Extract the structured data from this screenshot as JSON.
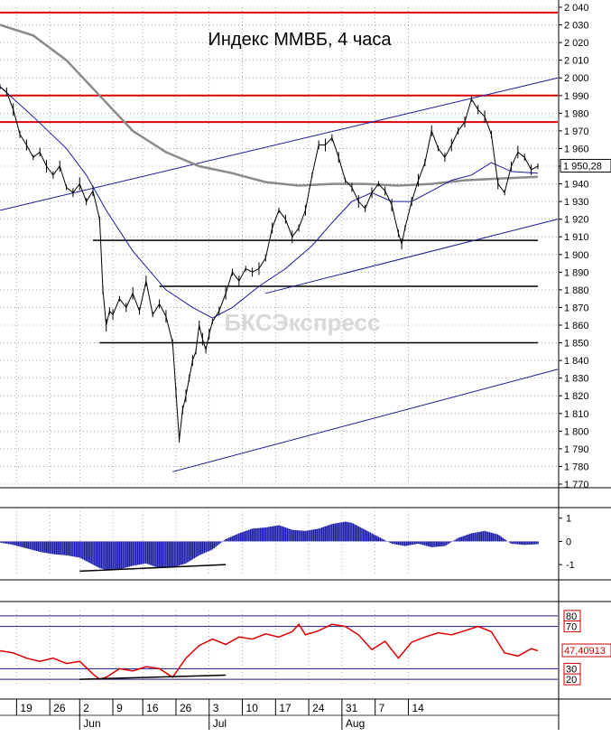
{
  "chart_data": {
    "type": "line",
    "title": "Индекс ММВБ, 4 часа",
    "watermark": "БКСЭкспресс",
    "colors": {
      "background": "#ffffff",
      "grid": "#777777",
      "price": "#000000",
      "ma_fast": "#1a1a9a",
      "ma_slow": "#8a8a8a",
      "resistance": "#dd0000",
      "support": "#000000",
      "channel": "#1a1a9a",
      "macd": "#1a1aaa",
      "rsi": "#dd0000",
      "rsi_levels": "#1a1a8a",
      "rsi_label_border": "#cc0000"
    },
    "price_panel": {
      "ylim": [
        1770,
        2040
      ],
      "y_ticks": [
        "2 040",
        "2 030",
        "2 020",
        "2 010",
        "2 000",
        "1 990",
        "1 980",
        "1 970",
        "1 960",
        "1 950",
        "1 940",
        "1 930",
        "1 920",
        "1 910",
        "1 900",
        "1 890",
        "1 880",
        "1 870",
        "1 860",
        "1 850",
        "1 840",
        "1 830",
        "1 820",
        "1 810",
        "1 800",
        "1 790",
        "1 780",
        "1 770"
      ],
      "y_tick_values": [
        2040,
        2030,
        2020,
        2010,
        2000,
        1990,
        1980,
        1970,
        1960,
        1950,
        1940,
        1930,
        1920,
        1910,
        1900,
        1890,
        1880,
        1870,
        1860,
        1850,
        1840,
        1830,
        1820,
        1810,
        1800,
        1790,
        1780,
        1770
      ],
      "last_value_label": "1 950,28",
      "last_value": 1950.28,
      "grid": true,
      "close_series": [
        [
          0,
          1995
        ],
        [
          2,
          1992
        ],
        [
          4,
          1982
        ],
        [
          6,
          1968
        ],
        [
          8,
          1962
        ],
        [
          10,
          1955
        ],
        [
          12,
          1958
        ],
        [
          14,
          1950
        ],
        [
          16,
          1945
        ],
        [
          18,
          1950
        ],
        [
          20,
          1938
        ],
        [
          22,
          1935
        ],
        [
          24,
          1940
        ],
        [
          26,
          1930
        ],
        [
          28,
          1936
        ],
        [
          30,
          1920
        ],
        [
          31,
          1880
        ],
        [
          32,
          1860
        ],
        [
          33,
          1868
        ],
        [
          34,
          1866
        ],
        [
          36,
          1875
        ],
        [
          38,
          1870
        ],
        [
          40,
          1878
        ],
        [
          42,
          1868
        ],
        [
          44,
          1885
        ],
        [
          46,
          1866
        ],
        [
          48,
          1872
        ],
        [
          50,
          1865
        ],
        [
          52,
          1850
        ],
        [
          53,
          1822
        ],
        [
          54,
          1795
        ],
        [
          55,
          1812
        ],
        [
          56,
          1820
        ],
        [
          57,
          1830
        ],
        [
          58,
          1840
        ],
        [
          59,
          1845
        ],
        [
          60,
          1860
        ],
        [
          61,
          1852
        ],
        [
          62,
          1846
        ],
        [
          63,
          1855
        ],
        [
          64,
          1862
        ],
        [
          66,
          1868
        ],
        [
          68,
          1878
        ],
        [
          70,
          1890
        ],
        [
          72,
          1885
        ],
        [
          74,
          1892
        ],
        [
          76,
          1890
        ],
        [
          78,
          1892
        ],
        [
          80,
          1898
        ],
        [
          82,
          1915
        ],
        [
          84,
          1925
        ],
        [
          86,
          1920
        ],
        [
          88,
          1910
        ],
        [
          90,
          1915
        ],
        [
          92,
          1925
        ],
        [
          94,
          1945
        ],
        [
          96,
          1962
        ],
        [
          98,
          1962
        ],
        [
          100,
          1966
        ],
        [
          102,
          1955
        ],
        [
          104,
          1942
        ],
        [
          106,
          1938
        ],
        [
          108,
          1930
        ],
        [
          110,
          1926
        ],
        [
          112,
          1935
        ],
        [
          114,
          1940
        ],
        [
          116,
          1936
        ],
        [
          118,
          1928
        ],
        [
          120,
          1912
        ],
        [
          121,
          1906
        ],
        [
          122,
          1915
        ],
        [
          124,
          1930
        ],
        [
          126,
          1942
        ],
        [
          128,
          1952
        ],
        [
          130,
          1970
        ],
        [
          132,
          1960
        ],
        [
          134,
          1955
        ],
        [
          136,
          1962
        ],
        [
          138,
          1970
        ],
        [
          140,
          1975
        ],
        [
          142,
          1988
        ],
        [
          144,
          1982
        ],
        [
          146,
          1978
        ],
        [
          148,
          1968
        ],
        [
          150,
          1940
        ],
        [
          152,
          1935
        ],
        [
          154,
          1950
        ],
        [
          156,
          1958
        ],
        [
          158,
          1955
        ],
        [
          160,
          1948
        ],
        [
          162,
          1950
        ]
      ],
      "ma_fast": [
        [
          0,
          1995
        ],
        [
          10,
          1978
        ],
        [
          20,
          1960
        ],
        [
          26,
          1945
        ],
        [
          32,
          1925
        ],
        [
          40,
          1902
        ],
        [
          50,
          1880
        ],
        [
          58,
          1870
        ],
        [
          64,
          1864
        ],
        [
          70,
          1870
        ],
        [
          78,
          1882
        ],
        [
          86,
          1892
        ],
        [
          94,
          1905
        ],
        [
          100,
          1918
        ],
        [
          106,
          1930
        ],
        [
          112,
          1935
        ],
        [
          118,
          1930
        ],
        [
          124,
          1930
        ],
        [
          130,
          1936
        ],
        [
          136,
          1942
        ],
        [
          142,
          1945
        ],
        [
          148,
          1952
        ],
        [
          154,
          1947
        ],
        [
          162,
          1946
        ]
      ],
      "ma_slow": [
        [
          0,
          2030
        ],
        [
          10,
          2024
        ],
        [
          20,
          2010
        ],
        [
          30,
          1990
        ],
        [
          40,
          1970
        ],
        [
          50,
          1958
        ],
        [
          60,
          1950
        ],
        [
          70,
          1946
        ],
        [
          80,
          1941
        ],
        [
          90,
          1939
        ],
        [
          100,
          1940
        ],
        [
          110,
          1940
        ],
        [
          120,
          1939
        ],
        [
          130,
          1940
        ],
        [
          140,
          1942
        ],
        [
          150,
          1943
        ],
        [
          162,
          1944
        ]
      ],
      "resistance_levels": [
        2037,
        1990,
        1975
      ],
      "support_segments": [
        {
          "x0": 28,
          "x1": 162,
          "y": 1908
        },
        {
          "x0": 48,
          "x1": 162,
          "y": 1882
        },
        {
          "x0": 30,
          "x1": 162,
          "y": 1850
        }
      ],
      "channel_lines": [
        {
          "x0": 0,
          "y0": 1925,
          "x1": 168,
          "y1": 2000
        },
        {
          "x0": 80,
          "y0": 1878,
          "x1": 168,
          "y1": 1920
        },
        {
          "x0": 52,
          "y0": 1777,
          "x1": 168,
          "y1": 1835
        }
      ]
    },
    "macd_panel": {
      "ylim": [
        -1.5,
        1.3
      ],
      "y_ticks": [
        "1",
        "0",
        "-1"
      ],
      "y_tick_values": [
        1,
        0,
        -1
      ],
      "histogram": [
        [
          0,
          -0.05
        ],
        [
          4,
          -0.15
        ],
        [
          8,
          -0.3
        ],
        [
          12,
          -0.45
        ],
        [
          16,
          -0.55
        ],
        [
          20,
          -0.6
        ],
        [
          24,
          -0.7
        ],
        [
          28,
          -1.0
        ],
        [
          30,
          -1.15
        ],
        [
          32,
          -1.22
        ],
        [
          36,
          -1.2
        ],
        [
          40,
          -1.05
        ],
        [
          44,
          -0.95
        ],
        [
          48,
          -1.15
        ],
        [
          52,
          -1.12
        ],
        [
          56,
          -0.95
        ],
        [
          60,
          -0.6
        ],
        [
          64,
          -0.35
        ],
        [
          68,
          0.1
        ],
        [
          72,
          0.35
        ],
        [
          76,
          0.55
        ],
        [
          80,
          0.6
        ],
        [
          84,
          0.7
        ],
        [
          88,
          0.5
        ],
        [
          92,
          0.45
        ],
        [
          96,
          0.55
        ],
        [
          100,
          0.75
        ],
        [
          104,
          0.85
        ],
        [
          106,
          0.8
        ],
        [
          110,
          0.5
        ],
        [
          114,
          0.2
        ],
        [
          118,
          -0.1
        ],
        [
          122,
          -0.2
        ],
        [
          126,
          -0.1
        ],
        [
          130,
          -0.25
        ],
        [
          134,
          -0.2
        ],
        [
          138,
          0.15
        ],
        [
          142,
          0.35
        ],
        [
          146,
          0.45
        ],
        [
          150,
          0.3
        ],
        [
          154,
          -0.1
        ],
        [
          158,
          -0.15
        ],
        [
          162,
          -0.12
        ]
      ],
      "divergence_line": {
        "x0": 24,
        "y0": -1.28,
        "x1": 68,
        "y1": -1.0
      }
    },
    "rsi_panel": {
      "ylim": [
        15,
        85
      ],
      "levels": [
        80,
        70,
        30,
        20
      ],
      "level_labels": [
        "80",
        "70",
        "30",
        "20"
      ],
      "last_value_label": "47,40913",
      "last_value": 47.40913,
      "series": [
        [
          0,
          47
        ],
        [
          4,
          45
        ],
        [
          8,
          40
        ],
        [
          12,
          37
        ],
        [
          16,
          40
        ],
        [
          20,
          35
        ],
        [
          24,
          37
        ],
        [
          28,
          25
        ],
        [
          30,
          20
        ],
        [
          32,
          22
        ],
        [
          36,
          30
        ],
        [
          40,
          28
        ],
        [
          44,
          32
        ],
        [
          48,
          30
        ],
        [
          52,
          22
        ],
        [
          56,
          40
        ],
        [
          60,
          52
        ],
        [
          64,
          58
        ],
        [
          68,
          53
        ],
        [
          72,
          60
        ],
        [
          76,
          58
        ],
        [
          80,
          63
        ],
        [
          84,
          60
        ],
        [
          88,
          65
        ],
        [
          90,
          72
        ],
        [
          92,
          62
        ],
        [
          96,
          66
        ],
        [
          100,
          72
        ],
        [
          104,
          70
        ],
        [
          108,
          62
        ],
        [
          112,
          48
        ],
        [
          116,
          56
        ],
        [
          120,
          40
        ],
        [
          124,
          55
        ],
        [
          128,
          60
        ],
        [
          132,
          64
        ],
        [
          136,
          62
        ],
        [
          140,
          66
        ],
        [
          144,
          70
        ],
        [
          148,
          65
        ],
        [
          152,
          45
        ],
        [
          156,
          42
        ],
        [
          160,
          49
        ],
        [
          162,
          47
        ]
      ],
      "divergence_line": {
        "x0": 24,
        "y0": 20,
        "x1": 68,
        "y1": 24
      }
    },
    "x_axis": {
      "xlim": [
        0,
        168
      ],
      "ticks": [
        {
          "x": 5,
          "label": "19"
        },
        {
          "x": 15,
          "label": "26"
        },
        {
          "x": 24,
          "label": "2"
        },
        {
          "x": 34,
          "label": "9"
        },
        {
          "x": 43,
          "label": "16"
        },
        {
          "x": 53,
          "label": "26"
        },
        {
          "x": 63,
          "label": "3"
        },
        {
          "x": 73,
          "label": "10"
        },
        {
          "x": 83,
          "label": "17"
        },
        {
          "x": 93,
          "label": "24"
        },
        {
          "x": 103,
          "label": "31"
        },
        {
          "x": 113,
          "label": "7"
        },
        {
          "x": 123,
          "label": "14"
        }
      ],
      "month_labels": [
        {
          "x": 24,
          "label": "Jun"
        },
        {
          "x": 63,
          "label": "Jul"
        },
        {
          "x": 103,
          "label": "Aug"
        }
      ]
    }
  }
}
